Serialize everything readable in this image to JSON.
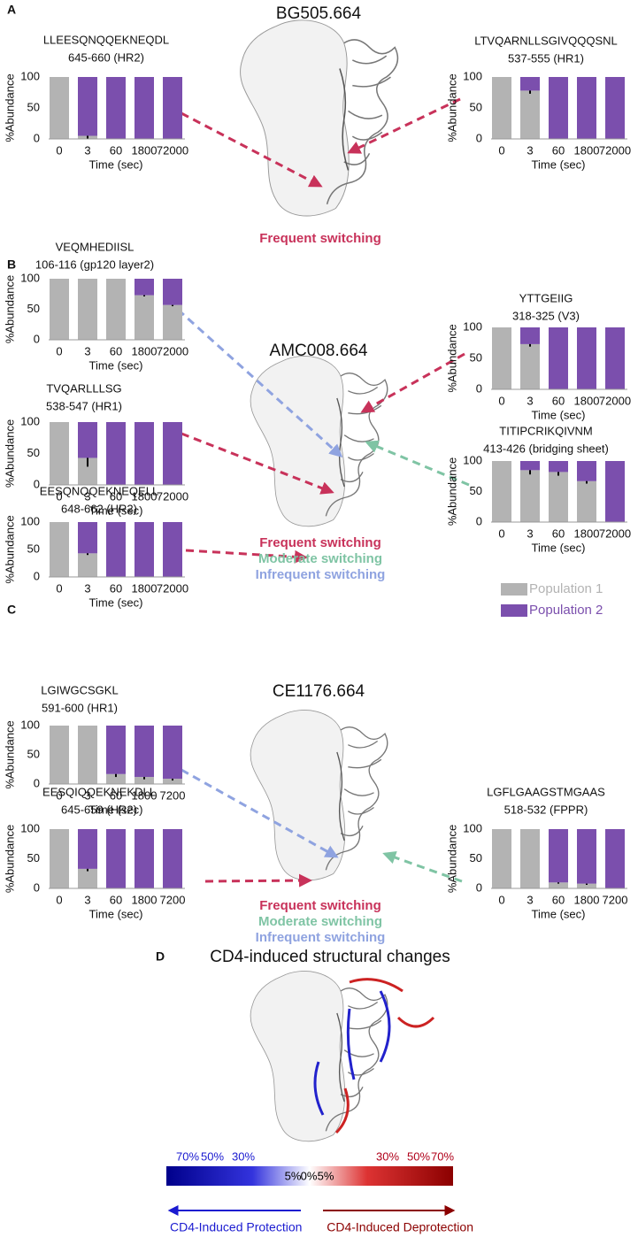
{
  "chart_data": [
    {
      "type": "bar",
      "title": "LLEESQNQQEKNEQDL",
      "subtitle": "645-660 (HR2)",
      "ylabel": "%Abundance",
      "xlabel": "Time (sec)",
      "categories": [
        "0",
        "3",
        "60",
        "1800",
        "72000"
      ],
      "series": [
        {
          "color": "#b3b3b3",
          "values": [
            100,
            5,
            0,
            0,
            0
          ],
          "errors": [
            null,
            5,
            null,
            null,
            null
          ]
        },
        {
          "color": "#7b4fad",
          "values": [
            0,
            95,
            100,
            100,
            100
          ]
        }
      ],
      "ylim": [
        0,
        100
      ],
      "yticks": [
        0,
        50,
        100
      ]
    },
    {
      "type": "bar",
      "title": "LTVQARNLLSGIVQQQSNL",
      "subtitle": "537-555 (HR1)",
      "ylabel": "%Abundance",
      "xlabel": "Time (sec)",
      "categories": [
        "0",
        "3",
        "60",
        "1800",
        "72000"
      ],
      "series": [
        {
          "color": "#b3b3b3",
          "values": [
            100,
            78,
            0,
            0,
            0
          ],
          "errors": [
            null,
            5,
            null,
            null,
            null
          ]
        },
        {
          "color": "#7b4fad",
          "values": [
            0,
            22,
            100,
            100,
            100
          ]
        }
      ],
      "ylim": [
        0,
        100
      ],
      "yticks": [
        0,
        50,
        100
      ]
    },
    {
      "type": "bar",
      "title": "VEQMHEDIISL",
      "subtitle": "106-116 (gp120 layer2)",
      "ylabel": "%Abundance",
      "xlabel": "Time (sec)",
      "categories": [
        "0",
        "3",
        "60",
        "1800",
        "72000"
      ],
      "series": [
        {
          "color": "#b3b3b3",
          "values": [
            100,
            100,
            100,
            73,
            57
          ],
          "errors": [
            null,
            null,
            null,
            2,
            2
          ]
        },
        {
          "color": "#7b4fad",
          "values": [
            0,
            0,
            0,
            27,
            43
          ]
        }
      ],
      "ylim": [
        0,
        100
      ],
      "yticks": [
        0,
        50,
        100
      ]
    },
    {
      "type": "bar",
      "title": "TVQARLLLSG",
      "subtitle": "538-547 (HR1)",
      "ylabel": "%Abundance",
      "xlabel": "Time (sec)",
      "categories": [
        "0",
        "3",
        "60",
        "1800",
        "72000"
      ],
      "series": [
        {
          "color": "#b3b3b3",
          "values": [
            100,
            43,
            0,
            0,
            0
          ],
          "errors": [
            null,
            14,
            null,
            null,
            null
          ]
        },
        {
          "color": "#7b4fad",
          "values": [
            0,
            57,
            100,
            100,
            100
          ]
        }
      ],
      "ylim": [
        0,
        100
      ],
      "yticks": [
        0,
        50,
        100
      ]
    },
    {
      "type": "bar",
      "title": "EESQNQQEKNEQELL",
      "subtitle": "648-662 (HR2)",
      "ylabel": "%Abundance",
      "xlabel": "Time (sec)",
      "categories": [
        "0",
        "3",
        "60",
        "1800",
        "72000"
      ],
      "series": [
        {
          "color": "#b3b3b3",
          "values": [
            100,
            43,
            0,
            0,
            0
          ],
          "errors": [
            null,
            3,
            null,
            null,
            null
          ]
        },
        {
          "color": "#7b4fad",
          "values": [
            0,
            57,
            100,
            100,
            100
          ]
        }
      ],
      "ylim": [
        0,
        100
      ],
      "yticks": [
        0,
        50,
        100
      ]
    },
    {
      "type": "bar",
      "title": "YTTGEIIG",
      "subtitle": "318-325 (V3)",
      "ylabel": "%Abundance",
      "xlabel": "Time (sec)",
      "categories": [
        "0",
        "3",
        "60",
        "1800",
        "72000"
      ],
      "series": [
        {
          "color": "#b3b3b3",
          "values": [
            100,
            73,
            0,
            0,
            0
          ],
          "errors": [
            null,
            4,
            null,
            null,
            null
          ]
        },
        {
          "color": "#7b4fad",
          "values": [
            0,
            27,
            100,
            100,
            100
          ]
        }
      ],
      "ylim": [
        0,
        100
      ],
      "yticks": [
        0,
        50,
        100
      ]
    },
    {
      "type": "bar",
      "title": "TITIPCRIKQIVNM",
      "subtitle": "413-426 (bridging sheet)",
      "ylabel": "%Abundance",
      "xlabel": "Time (sec)",
      "categories": [
        "0",
        "3",
        "60",
        "1800",
        "72000"
      ],
      "series": [
        {
          "color": "#b3b3b3",
          "values": [
            100,
            85,
            82,
            67,
            0
          ],
          "errors": [
            null,
            7,
            6,
            4,
            null
          ]
        },
        {
          "color": "#7b4fad",
          "values": [
            0,
            15,
            18,
            33,
            100
          ]
        }
      ],
      "ylim": [
        0,
        100
      ],
      "yticks": [
        0,
        50,
        100
      ]
    },
    {
      "type": "bar",
      "title": "LGIWGCSGKL",
      "subtitle": "591-600 (HR1)",
      "ylabel": "%Abundance",
      "xlabel": "Time (sec)",
      "categories": [
        "0",
        "3",
        "60",
        "1800",
        "7200"
      ],
      "series": [
        {
          "color": "#b3b3b3",
          "values": [
            100,
            100,
            17,
            12,
            9
          ],
          "errors": [
            null,
            null,
            5,
            4,
            3
          ]
        },
        {
          "color": "#7b4fad",
          "values": [
            0,
            0,
            83,
            88,
            91
          ]
        }
      ],
      "ylim": [
        0,
        100
      ],
      "yticks": [
        0,
        50,
        100
      ]
    },
    {
      "type": "bar",
      "title": "EESQIQQEKNEKDLL",
      "subtitle": "645-659 (HR2)",
      "ylabel": "%Abundance",
      "xlabel": "Time (sec)",
      "categories": [
        "0",
        "3",
        "60",
        "1800",
        "7200"
      ],
      "series": [
        {
          "color": "#b3b3b3",
          "values": [
            100,
            33,
            0,
            0,
            0
          ],
          "errors": [
            null,
            4,
            null,
            null,
            null
          ]
        },
        {
          "color": "#7b4fad",
          "values": [
            0,
            67,
            100,
            100,
            100
          ]
        }
      ],
      "ylim": [
        0,
        100
      ],
      "yticks": [
        0,
        50,
        100
      ]
    },
    {
      "type": "bar",
      "title": "LGFLGAAGSTMGAAS",
      "subtitle": "518-532 (FPPR)",
      "ylabel": "%Abundance",
      "xlabel": "Time (sec)",
      "categories": [
        "0",
        "3",
        "60",
        "1800",
        "7200"
      ],
      "series": [
        {
          "color": "#b3b3b3",
          "values": [
            100,
            100,
            10,
            8,
            0
          ],
          "errors": [
            null,
            null,
            2,
            2,
            null
          ]
        },
        {
          "color": "#7b4fad",
          "values": [
            0,
            0,
            90,
            92,
            100
          ]
        }
      ],
      "ylim": [
        0,
        100
      ],
      "yticks": [
        0,
        50,
        100
      ]
    }
  ],
  "panels": {
    "a": "A",
    "b": "B",
    "c": "C",
    "d": "D"
  },
  "structures": {
    "a": "BG505.664",
    "b": "AMC008.664",
    "c": "CE1176.664",
    "d": "CD4-induced structural changes"
  },
  "switching": {
    "frequent": "Frequent switching",
    "moderate": "Moderate switching",
    "infrequent": "Infrequent switching"
  },
  "legend": [
    {
      "name": "Population 1",
      "color": "#b3b3b3"
    },
    {
      "name": "Population 2",
      "color": "#7b4fad"
    }
  ],
  "colorbar": {
    "left_labels": [
      "70%",
      "50%",
      "30%"
    ],
    "center_labels": [
      "5%",
      "0%",
      "5%"
    ],
    "right_labels": [
      "30%",
      "50%",
      "70%"
    ],
    "left_caption": "CD4-Induced Protection",
    "right_caption": "CD4-Induced Deprotection"
  }
}
